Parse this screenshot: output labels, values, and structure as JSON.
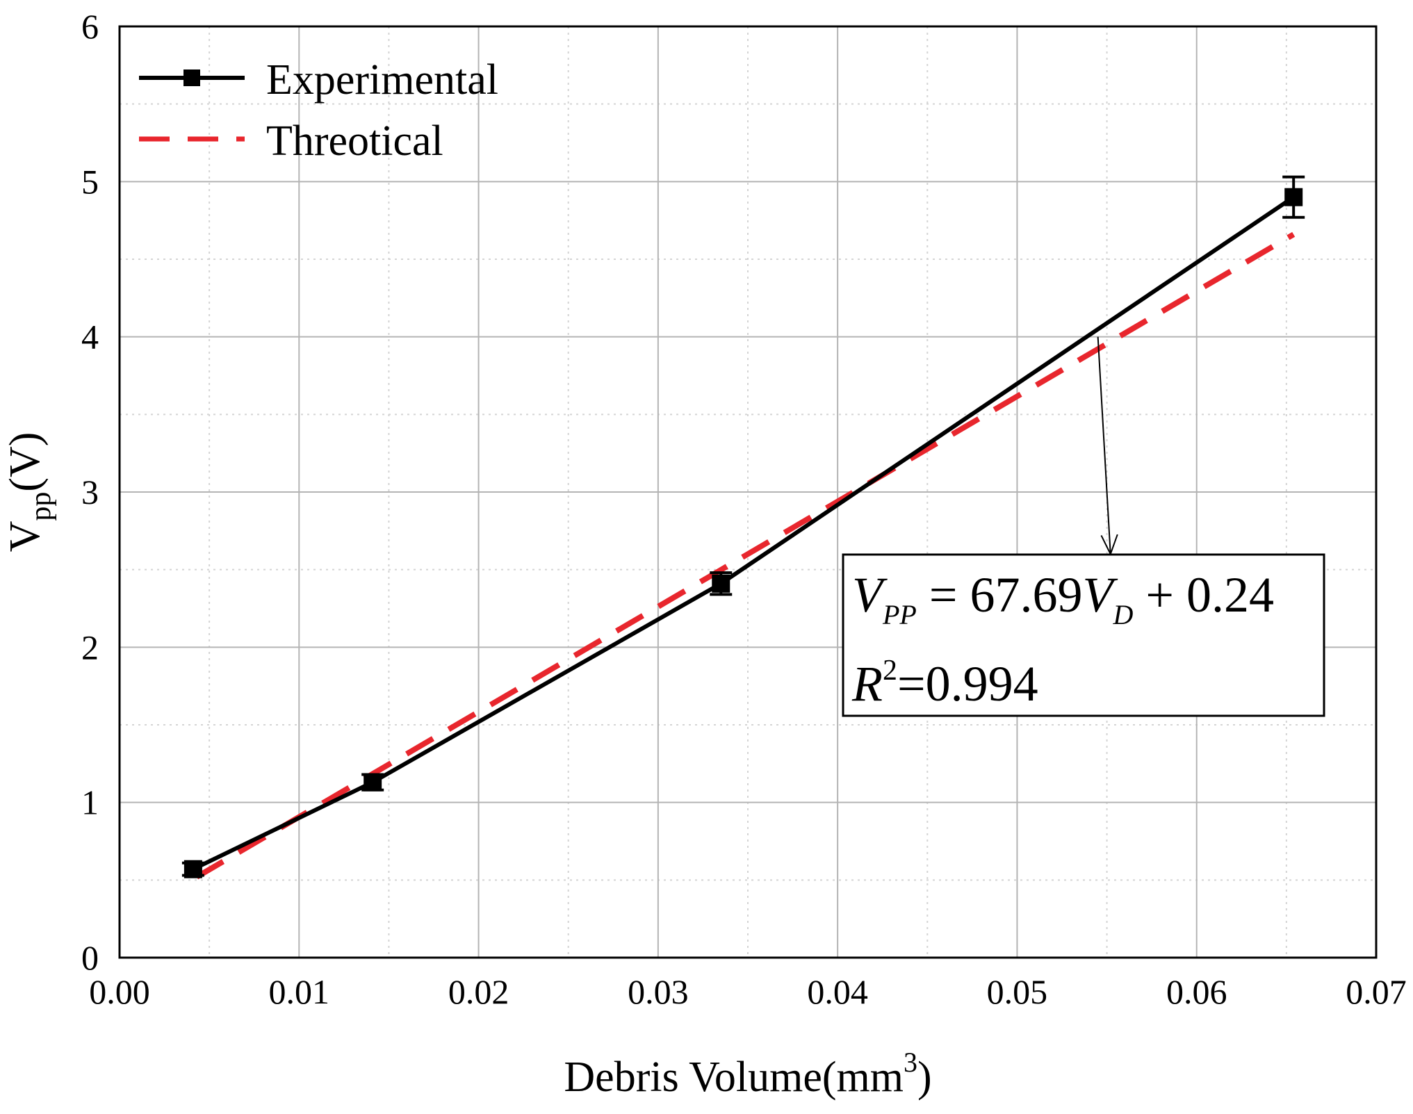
{
  "chart_data": {
    "type": "line",
    "title": "",
    "xlabel": {
      "base": "Debris Volume(mm",
      "sup": "3",
      "tail": ")"
    },
    "ylabel": {
      "base": "V",
      "sub": "pp",
      "tail": "(V)"
    },
    "xlim": [
      0,
      0.07
    ],
    "ylim": [
      0,
      6
    ],
    "grid": true,
    "x_ticks": [
      "0.00",
      "0.01",
      "0.02",
      "0.03",
      "0.04",
      "0.05",
      "0.06",
      "0.07"
    ],
    "y_ticks": [
      "0",
      "1",
      "2",
      "3",
      "4",
      "5",
      "6"
    ],
    "legend_position": "top-left",
    "series": [
      {
        "name": "Experimental",
        "style": "solid",
        "color": "#000000",
        "marker": "square",
        "x": [
          0.0041,
          0.0141,
          0.0335,
          0.0654
        ],
        "y": [
          0.57,
          1.13,
          2.41,
          4.9
        ],
        "error": [
          0.04,
          0.05,
          0.07,
          0.13
        ]
      },
      {
        "name": "Threotical",
        "style": "dashed",
        "color": "#e8262d",
        "x": [
          0.0043,
          0.0654
        ],
        "y": [
          0.52,
          4.66
        ]
      }
    ],
    "annotation": {
      "line1": {
        "v": "V",
        "pp": "PP",
        "eq": " = 67.69",
        "v2": "V",
        "d": "D",
        "tail": " + 0.24"
      },
      "line2": {
        "r": "R",
        "sup": "2",
        "tail": "=0.994"
      },
      "arrow_from": {
        "x": 0.0545,
        "y": 4.0
      },
      "arrow_to": {
        "x": 0.0552,
        "y": 2.6
      }
    }
  }
}
